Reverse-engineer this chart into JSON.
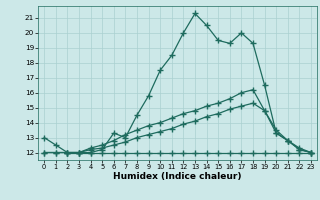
{
  "xlabel": "Humidex (Indice chaleur)",
  "bg_color": "#cce8e8",
  "grid_color": "#aad0d0",
  "line_color": "#1e6b5e",
  "xlim": [
    -0.5,
    23.5
  ],
  "ylim": [
    11.5,
    21.8
  ],
  "xticks": [
    0,
    1,
    2,
    3,
    4,
    5,
    6,
    7,
    8,
    9,
    10,
    11,
    12,
    13,
    14,
    15,
    16,
    17,
    18,
    19,
    20,
    21,
    22,
    23
  ],
  "yticks": [
    12,
    13,
    14,
    15,
    16,
    17,
    18,
    19,
    20,
    21
  ],
  "line1_x": [
    0,
    1,
    2,
    3,
    4,
    5,
    6,
    7,
    8,
    9,
    10,
    11,
    12,
    13,
    14,
    15,
    16,
    17,
    18,
    19,
    20,
    21,
    22,
    23
  ],
  "line1_y": [
    13.0,
    12.5,
    12.0,
    12.0,
    12.0,
    12.2,
    13.3,
    13.0,
    14.5,
    15.8,
    17.5,
    18.5,
    20.0,
    21.3,
    20.5,
    19.5,
    19.3,
    20.0,
    19.3,
    16.5,
    13.3,
    12.8,
    12.2,
    12.0
  ],
  "line2_x": [
    2,
    3,
    4,
    5,
    6,
    7,
    8,
    9,
    10,
    11,
    12,
    13,
    14,
    15,
    16,
    17,
    18,
    19,
    20,
    21,
    22,
    23
  ],
  "line2_y": [
    12.0,
    12.0,
    12.0,
    12.0,
    12.0,
    12.0,
    12.0,
    12.0,
    12.0,
    12.0,
    12.0,
    12.0,
    12.0,
    12.0,
    12.0,
    12.0,
    12.0,
    12.0,
    12.0,
    12.0,
    12.0,
    12.0
  ],
  "line3_x": [
    0,
    1,
    2,
    3,
    4,
    5,
    6,
    7,
    8,
    9,
    10,
    11,
    12,
    13,
    14,
    15,
    16,
    17,
    18,
    19,
    20,
    21,
    22,
    23
  ],
  "line3_y": [
    12.0,
    12.0,
    12.0,
    12.0,
    12.3,
    12.5,
    12.8,
    13.2,
    13.5,
    13.8,
    14.0,
    14.3,
    14.6,
    14.8,
    15.1,
    15.3,
    15.6,
    16.0,
    16.2,
    14.8,
    13.3,
    12.8,
    12.2,
    12.0
  ],
  "line4_x": [
    0,
    1,
    2,
    3,
    4,
    5,
    6,
    7,
    8,
    9,
    10,
    11,
    12,
    13,
    14,
    15,
    16,
    17,
    18,
    19,
    20,
    21,
    22,
    23
  ],
  "line4_y": [
    12.0,
    12.0,
    12.0,
    12.0,
    12.2,
    12.3,
    12.5,
    12.7,
    13.0,
    13.2,
    13.4,
    13.6,
    13.9,
    14.1,
    14.4,
    14.6,
    14.9,
    15.1,
    15.3,
    14.8,
    13.5,
    12.8,
    12.3,
    12.0
  ]
}
